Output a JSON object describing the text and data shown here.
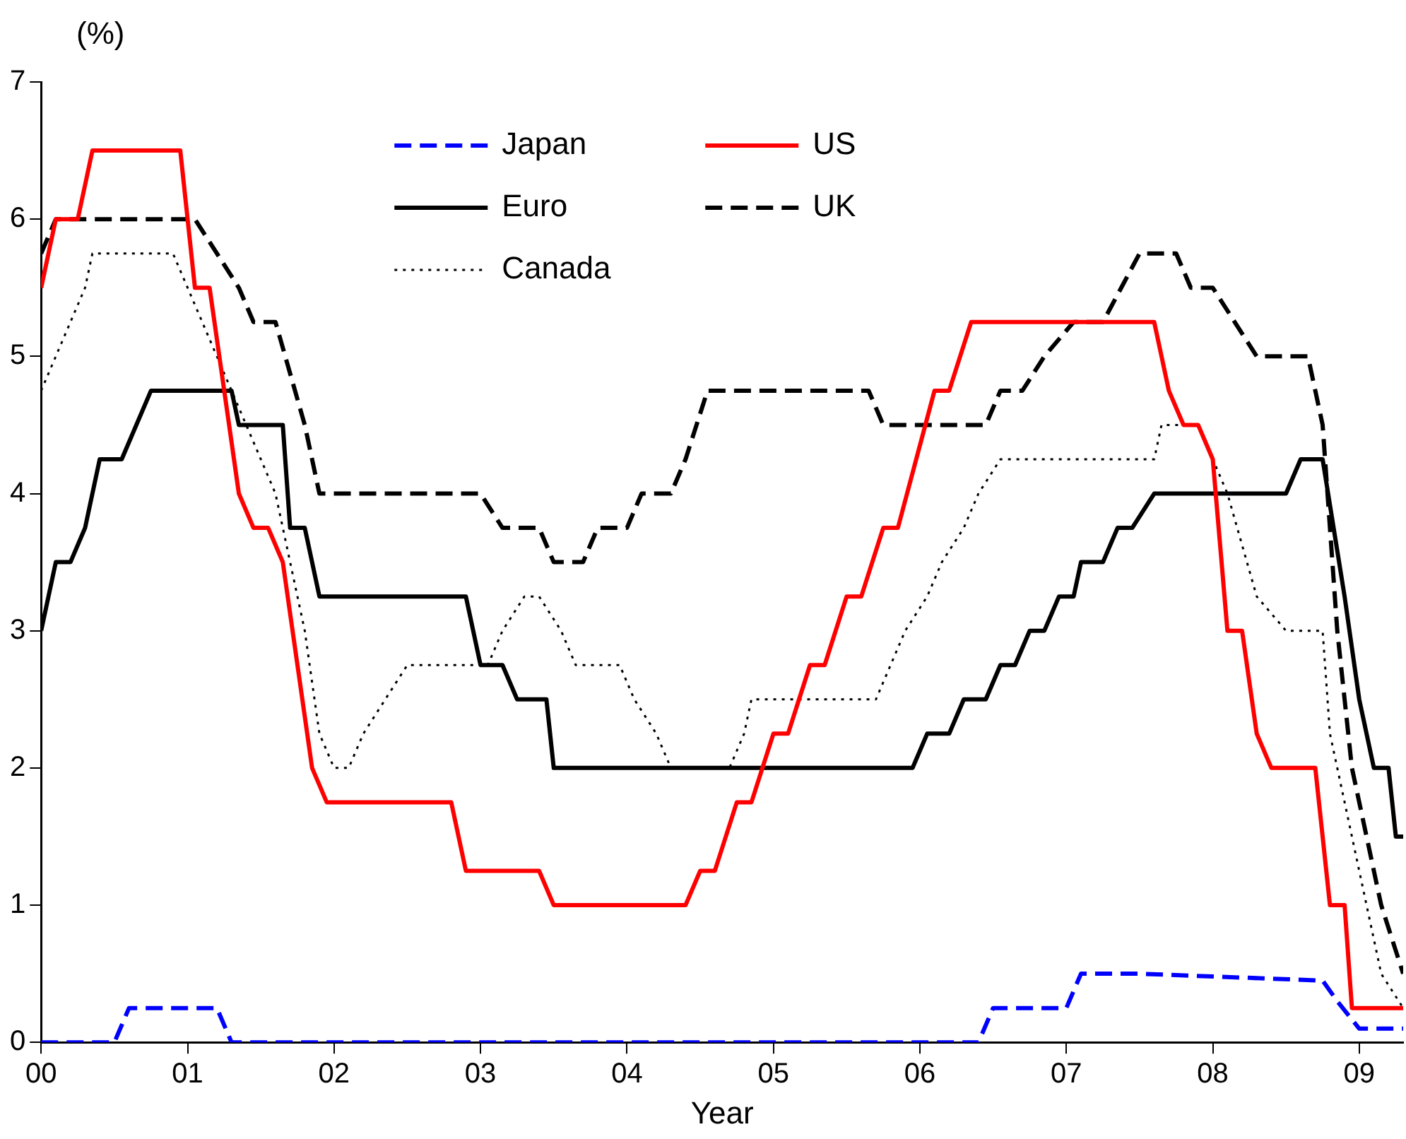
{
  "chart_data": {
    "type": "line",
    "ylabel": "(%)",
    "xlabel": "Year",
    "xlim": [
      0,
      9.3
    ],
    "ylim": [
      0,
      7
    ],
    "yticks": [
      0,
      1,
      2,
      3,
      4,
      5,
      6,
      7
    ],
    "xticks": [
      {
        "value": 0,
        "label": "00"
      },
      {
        "value": 1,
        "label": "01"
      },
      {
        "value": 2,
        "label": "02"
      },
      {
        "value": 3,
        "label": "03"
      },
      {
        "value": 4,
        "label": "04"
      },
      {
        "value": 5,
        "label": "05"
      },
      {
        "value": 6,
        "label": "06"
      },
      {
        "value": 7,
        "label": "07"
      },
      {
        "value": 8,
        "label": "08"
      },
      {
        "value": 9,
        "label": "09"
      }
    ],
    "grid": false,
    "legend": "top",
    "marker": "none",
    "series": [
      {
        "name": "Japan",
        "color": "#0000ff",
        "line_style": "dashed",
        "x": [
          0,
          0.5,
          0.6,
          1.2,
          1.3,
          6.4,
          6.5,
          7.0,
          7.1,
          7.5,
          8.75,
          8.85,
          9.0,
          9.3
        ],
        "values": [
          0,
          0,
          0.25,
          0.25,
          0,
          0,
          0.25,
          0.25,
          0.5,
          0.5,
          0.45,
          0.3,
          0.1,
          0.1
        ]
      },
      {
        "name": "US",
        "color": "#ff0000",
        "line_style": "solid",
        "x": [
          0,
          0.1,
          0.25,
          0.35,
          0.95,
          1.05,
          1.15,
          1.35,
          1.45,
          1.55,
          1.65,
          1.85,
          1.95,
          2.8,
          2.9,
          3.4,
          3.5,
          4.4,
          4.5,
          4.6,
          4.75,
          4.85,
          5.0,
          5.1,
          5.25,
          5.35,
          5.5,
          5.6,
          5.75,
          5.85,
          6.1,
          6.2,
          6.35,
          7.6,
          7.7,
          7.8,
          7.9,
          8.0,
          8.1,
          8.2,
          8.3,
          8.4,
          8.7,
          8.8,
          8.9,
          8.95,
          9.3
        ],
        "values": [
          5.5,
          6,
          6,
          6.5,
          6.5,
          5.5,
          5.5,
          4,
          3.75,
          3.75,
          3.5,
          2,
          1.75,
          1.75,
          1.25,
          1.25,
          1,
          1,
          1.25,
          1.25,
          1.75,
          1.75,
          2.25,
          2.25,
          2.75,
          2.75,
          3.25,
          3.25,
          3.75,
          3.75,
          4.75,
          4.75,
          5.25,
          5.25,
          4.75,
          4.5,
          4.5,
          4.25,
          3,
          3,
          2.25,
          2,
          2,
          1,
          1,
          0.25,
          0.25
        ]
      },
      {
        "name": "Euro",
        "color": "#000000",
        "line_style": "solid",
        "x": [
          0,
          0.1,
          0.2,
          0.3,
          0.4,
          0.55,
          0.75,
          1.3,
          1.35,
          1.65,
          1.7,
          1.8,
          1.9,
          2.9,
          3.0,
          3.15,
          3.25,
          3.45,
          3.5,
          5.95,
          6.05,
          6.2,
          6.3,
          6.45,
          6.55,
          6.65,
          6.75,
          6.85,
          6.95,
          7.05,
          7.1,
          7.25,
          7.35,
          7.45,
          7.6,
          8.5,
          8.6,
          8.75,
          8.9,
          9.0,
          9.1,
          9.2,
          9.25,
          9.3
        ],
        "values": [
          3,
          3.5,
          3.5,
          3.75,
          4.25,
          4.25,
          4.75,
          4.75,
          4.5,
          4.5,
          3.75,
          3.75,
          3.25,
          3.25,
          2.75,
          2.75,
          2.5,
          2.5,
          2,
          2,
          2.25,
          2.25,
          2.5,
          2.5,
          2.75,
          2.75,
          3,
          3,
          3.25,
          3.25,
          3.5,
          3.5,
          3.75,
          3.75,
          4,
          4,
          4.25,
          4.25,
          3.25,
          2.5,
          2,
          2,
          1.5,
          1.5
        ]
      },
      {
        "name": "UK",
        "color": "#000000",
        "line_style": "dashed",
        "x": [
          0,
          0.1,
          1.05,
          1.2,
          1.35,
          1.45,
          1.6,
          1.8,
          1.9,
          3.0,
          3.15,
          3.4,
          3.5,
          3.7,
          3.8,
          4.0,
          4.1,
          4.3,
          4.4,
          4.55,
          5.65,
          5.75,
          6.45,
          6.55,
          6.7,
          6.85,
          7.05,
          7.25,
          7.5,
          7.75,
          7.85,
          8.0,
          8.15,
          8.3,
          8.65,
          8.75,
          8.85,
          8.95,
          9.05,
          9.15,
          9.3
        ],
        "values": [
          5.75,
          6,
          6,
          5.75,
          5.5,
          5.25,
          5.25,
          4.5,
          4,
          4,
          3.75,
          3.75,
          3.5,
          3.5,
          3.75,
          3.75,
          4,
          4,
          4.25,
          4.75,
          4.75,
          4.5,
          4.5,
          4.75,
          4.75,
          5,
          5.25,
          5.25,
          5.75,
          5.75,
          5.5,
          5.5,
          5.25,
          5,
          5,
          4.5,
          3,
          2,
          1.5,
          1,
          0.5
        ]
      },
      {
        "name": "Canada",
        "color": "#000000",
        "line_style": "dotted",
        "x": [
          0,
          0.1,
          0.2,
          0.3,
          0.35,
          0.9,
          1.0,
          1.1,
          1.3,
          1.5,
          1.6,
          1.8,
          1.9,
          2.0,
          2.1,
          2.2,
          2.35,
          2.5,
          3.05,
          3.15,
          3.3,
          3.4,
          3.55,
          3.65,
          3.95,
          4.05,
          4.2,
          4.3,
          4.7,
          4.8,
          4.85,
          5.7,
          5.8,
          5.9,
          6.05,
          6.15,
          6.3,
          6.4,
          6.55,
          7.6,
          7.65,
          7.9,
          8.1,
          8.3,
          8.5,
          8.75,
          8.8,
          8.95,
          9.05,
          9.15,
          9.3
        ],
        "values": [
          4.75,
          5,
          5.25,
          5.5,
          5.75,
          5.75,
          5.5,
          5.25,
          4.75,
          4.25,
          4,
          3,
          2.25,
          2,
          2,
          2.25,
          2.5,
          2.75,
          2.75,
          3,
          3.25,
          3.25,
          3,
          2.75,
          2.75,
          2.5,
          2.25,
          2,
          2,
          2.25,
          2.5,
          2.5,
          2.75,
          3,
          3.25,
          3.5,
          3.75,
          4,
          4.25,
          4.25,
          4.5,
          4.5,
          4,
          3.25,
          3,
          3,
          2.25,
          1.5,
          1,
          0.5,
          0.25
        ]
      }
    ]
  }
}
